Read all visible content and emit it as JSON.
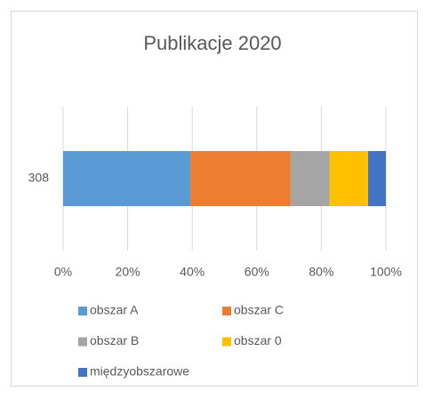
{
  "chart_data": {
    "type": "stacked_bar_horizontal",
    "title": "Publikacje 2020",
    "categories": [
      "308"
    ],
    "series": [
      {
        "name": "obszar A",
        "color": "#5b9bd5",
        "values": [
          39.4
        ]
      },
      {
        "name": "obszar C",
        "color": "#ed7d31",
        "values": [
          31.1
        ]
      },
      {
        "name": "obszar B",
        "color": "#a5a5a5",
        "values": [
          12.1
        ]
      },
      {
        "name": "obszar 0",
        "color": "#ffc000",
        "values": [
          11.9
        ]
      },
      {
        "name": "międzyobszarowe",
        "color": "#4472c4",
        "values": [
          5.5
        ]
      }
    ],
    "xlim": [
      0,
      100
    ],
    "xticks": [
      {
        "value": 0,
        "label": "0%"
      },
      {
        "value": 20,
        "label": "20%"
      },
      {
        "value": 40,
        "label": "40%"
      },
      {
        "value": 60,
        "label": "60%"
      },
      {
        "value": 80,
        "label": "80%"
      },
      {
        "value": 100,
        "label": "100%"
      }
    ],
    "grid": true,
    "legend": "bottom"
  }
}
